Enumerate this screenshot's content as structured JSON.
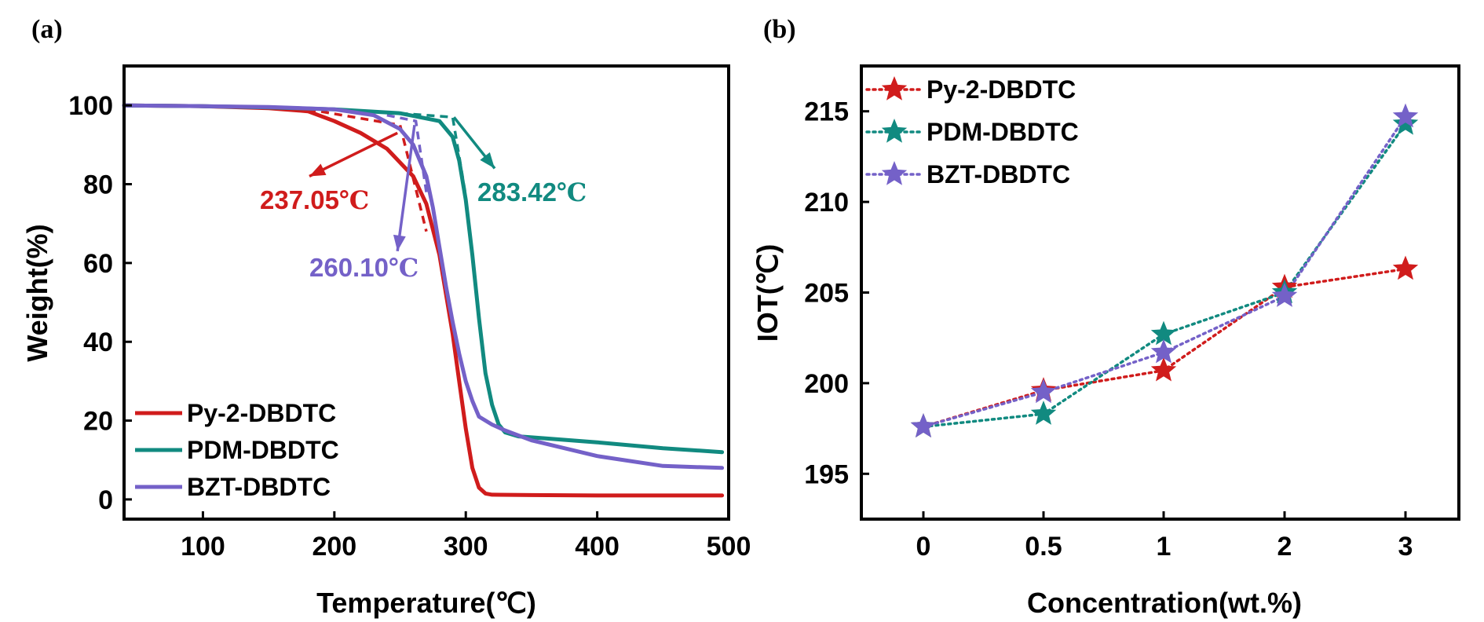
{
  "chart_data": [
    {
      "panel_label": "(a)",
      "type": "line",
      "xlabel": "Temperature(℃)",
      "ylabel": "Weight(%)",
      "xlim": [
        40,
        500
      ],
      "ylim": [
        -5,
        110
      ],
      "xticks": [
        100,
        200,
        300,
        400,
        500
      ],
      "yticks": [
        0,
        20,
        40,
        60,
        80,
        100
      ],
      "legend_position": "bottom-left",
      "series": [
        {
          "name": "Py-2-DBDTC",
          "color": "#d01c1c",
          "x": [
            40,
            100,
            150,
            180,
            200,
            220,
            240,
            260,
            270,
            280,
            290,
            295,
            300,
            305,
            310,
            315,
            320,
            350,
            400,
            450,
            495
          ],
          "y": [
            100,
            99.8,
            99.3,
            98.5,
            96,
            93,
            89,
            82,
            75,
            62,
            42,
            30,
            18,
            8,
            3,
            1.5,
            1.2,
            1.1,
            1.0,
            1.0,
            1.0
          ]
        },
        {
          "name": "PDM-DBDTC",
          "color": "#118a80",
          "x": [
            40,
            100,
            150,
            200,
            250,
            280,
            290,
            295,
            300,
            305,
            310,
            315,
            320,
            325,
            330,
            340,
            360,
            400,
            450,
            495
          ],
          "y": [
            100,
            99.8,
            99.5,
            99,
            98,
            96,
            92,
            86,
            76,
            62,
            46,
            32,
            24,
            19,
            17,
            16,
            15.5,
            14.5,
            13,
            12
          ]
        },
        {
          "name": "BZT-DBDTC",
          "color": "#7461c8",
          "x": [
            40,
            100,
            150,
            200,
            230,
            250,
            260,
            270,
            275,
            280,
            285,
            290,
            295,
            300,
            305,
            310,
            320,
            330,
            350,
            400,
            450,
            495
          ],
          "y": [
            100,
            99.8,
            99.6,
            99,
            97.5,
            94,
            90,
            82,
            74,
            64,
            54,
            45,
            37,
            30,
            25,
            21,
            19,
            17.5,
            15,
            11,
            8.5,
            8
          ]
        }
      ],
      "onset_lines": [
        {
          "series": "Py-2-DBDTC",
          "x": [
            180,
            250,
            270
          ],
          "y": [
            99,
            95,
            68
          ]
        },
        {
          "series": "PDM-DBDTC",
          "x": [
            250,
            290,
            300
          ],
          "y": [
            98,
            97,
            77
          ]
        },
        {
          "series": "BZT-DBDTC",
          "x": [
            240,
            262,
            270
          ],
          "y": [
            97.5,
            96,
            78
          ]
        }
      ],
      "annotations": [
        {
          "value": "237.05",
          "unit": "℃",
          "color": "#d01c1c",
          "arrow_from": [
            248,
            93
          ],
          "arrow_to": [
            181,
            82
          ]
        },
        {
          "value": "283.42",
          "unit": "℃",
          "color": "#118a80",
          "arrow_from": [
            291,
            97
          ],
          "arrow_to": [
            322,
            84
          ]
        },
        {
          "value": "260.10",
          "unit": "℃",
          "color": "#7461c8",
          "arrow_from": [
            261,
            95
          ],
          "arrow_to": [
            248,
            63
          ]
        }
      ]
    },
    {
      "panel_label": "(b)",
      "type": "line",
      "marker": "star",
      "line_style": "dotted",
      "xlabel": "Concentration(wt.%)",
      "ylabel": "IOT(℃)",
      "categories": [
        "0",
        "0.5",
        "1",
        "2",
        "3"
      ],
      "ylim": [
        192.5,
        217.5
      ],
      "yticks": [
        195,
        200,
        205,
        210,
        215
      ],
      "legend_position": "top-left",
      "series": [
        {
          "name": "Py-2-DBDTC",
          "color": "#d01c1c",
          "values": [
            197.6,
            199.6,
            200.7,
            205.3,
            206.3
          ]
        },
        {
          "name": "PDM-DBDTC",
          "color": "#118a80",
          "values": [
            197.6,
            198.3,
            202.7,
            205.0,
            214.3
          ]
        },
        {
          "name": "BZT-DBDTC",
          "color": "#7461c8",
          "values": [
            197.6,
            199.5,
            201.7,
            204.8,
            214.7
          ]
        }
      ]
    }
  ]
}
